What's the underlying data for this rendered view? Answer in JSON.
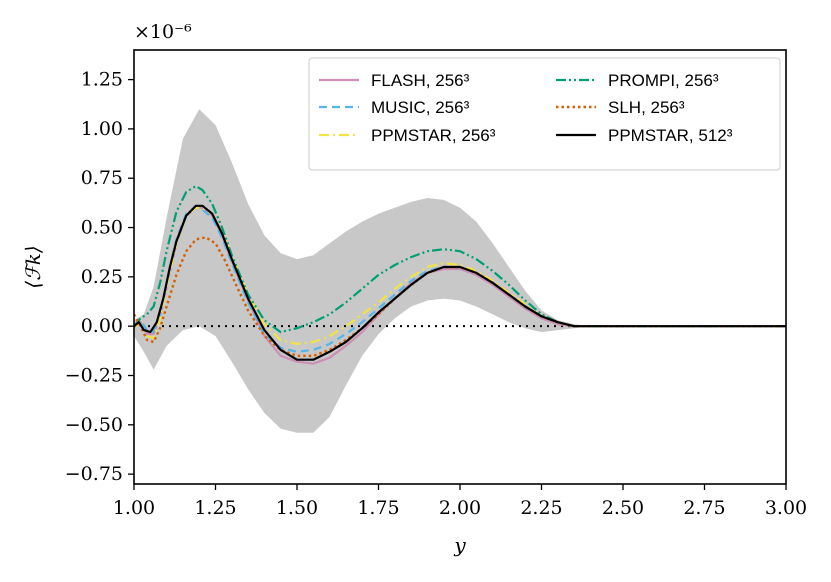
{
  "chart_data": {
    "type": "line",
    "xlabel": "y",
    "ylabel": "⟨ℱk⟩",
    "y_offset_label": "×10⁻⁶",
    "xlim": [
      1.0,
      3.0
    ],
    "ylim": [
      -0.8,
      1.4
    ],
    "x_ticks": [
      "1.00",
      "1.25",
      "1.50",
      "1.75",
      "2.00",
      "2.25",
      "2.50",
      "2.75",
      "3.00"
    ],
    "y_ticks": [
      "−0.75",
      "−0.50",
      "−0.25",
      "0.00",
      "0.25",
      "0.50",
      "0.75",
      "1.00",
      "1.25"
    ],
    "legend_position": "upper-right",
    "band": {
      "color": "#c8c8c8",
      "x": [
        1.0,
        1.03,
        1.06,
        1.1,
        1.15,
        1.2,
        1.25,
        1.3,
        1.35,
        1.4,
        1.45,
        1.5,
        1.55,
        1.6,
        1.65,
        1.7,
        1.75,
        1.8,
        1.85,
        1.9,
        1.95,
        2.0,
        2.05,
        2.1,
        2.15,
        2.2,
        2.25,
        2.3,
        2.35,
        2.4,
        2.5,
        2.75,
        3.0
      ],
      "upper": [
        0.03,
        0.06,
        0.2,
        0.55,
        0.95,
        1.1,
        1.02,
        0.83,
        0.62,
        0.46,
        0.37,
        0.34,
        0.36,
        0.42,
        0.48,
        0.53,
        0.57,
        0.6,
        0.63,
        0.65,
        0.64,
        0.6,
        0.53,
        0.42,
        0.3,
        0.18,
        0.08,
        0.03,
        0.01,
        0.0,
        0.0,
        0.0,
        0.0
      ],
      "lower": [
        -0.05,
        -0.13,
        -0.22,
        -0.1,
        -0.02,
        0.0,
        -0.05,
        -0.18,
        -0.32,
        -0.44,
        -0.52,
        -0.54,
        -0.54,
        -0.46,
        -0.3,
        -0.15,
        -0.04,
        0.04,
        0.1,
        0.13,
        0.14,
        0.13,
        0.1,
        0.06,
        0.02,
        -0.01,
        -0.03,
        -0.02,
        -0.01,
        0.0,
        0.0,
        0.0,
        0.0
      ]
    },
    "zero_line": {
      "color": "#000000",
      "dash": "2,5"
    },
    "series": [
      {
        "name": "FLASH, 256³",
        "color": "#cc8fb5",
        "dash": "",
        "width": 2.2,
        "x": [
          1.0,
          1.02,
          1.04,
          1.06,
          1.08,
          1.1,
          1.13,
          1.16,
          1.19,
          1.21,
          1.24,
          1.27,
          1.3,
          1.35,
          1.4,
          1.45,
          1.5,
          1.55,
          1.6,
          1.65,
          1.7,
          1.75,
          1.8,
          1.85,
          1.9,
          1.95,
          2.0,
          2.05,
          2.1,
          2.15,
          2.2,
          2.25,
          2.3,
          2.35,
          2.4,
          2.5,
          2.75,
          3.0
        ],
        "y": [
          0.0,
          0.02,
          -0.04,
          -0.04,
          0.05,
          0.2,
          0.42,
          0.56,
          0.6,
          0.6,
          0.56,
          0.46,
          0.33,
          0.13,
          -0.05,
          -0.15,
          -0.18,
          -0.19,
          -0.16,
          -0.1,
          -0.03,
          0.06,
          0.14,
          0.22,
          0.27,
          0.29,
          0.29,
          0.26,
          0.21,
          0.15,
          0.09,
          0.04,
          0.01,
          0.0,
          0.0,
          0.0,
          0.0,
          0.0
        ]
      },
      {
        "name": "MUSIC, 256³",
        "color": "#56b4e9",
        "dash": "8,5",
        "width": 2.2,
        "x": [
          1.0,
          1.02,
          1.04,
          1.06,
          1.08,
          1.1,
          1.13,
          1.16,
          1.19,
          1.21,
          1.24,
          1.27,
          1.3,
          1.35,
          1.4,
          1.45,
          1.5,
          1.55,
          1.6,
          1.65,
          1.7,
          1.75,
          1.8,
          1.85,
          1.9,
          1.95,
          2.0,
          2.05,
          2.1,
          2.15,
          2.2,
          2.25,
          2.3,
          2.35,
          2.4,
          2.5,
          2.75,
          3.0
        ],
        "y": [
          0.0,
          0.03,
          -0.02,
          -0.03,
          0.06,
          0.22,
          0.44,
          0.57,
          0.6,
          0.59,
          0.55,
          0.45,
          0.32,
          0.12,
          -0.04,
          -0.11,
          -0.13,
          -0.12,
          -0.09,
          -0.04,
          0.02,
          0.09,
          0.16,
          0.23,
          0.28,
          0.3,
          0.3,
          0.27,
          0.22,
          0.16,
          0.1,
          0.05,
          0.02,
          0.0,
          0.0,
          0.0,
          0.0,
          0.0
        ]
      },
      {
        "name": "PPMSTAR, 256³",
        "color": "#f0e442",
        "dash": "10,4,2,4",
        "width": 2.2,
        "x": [
          1.0,
          1.02,
          1.04,
          1.06,
          1.08,
          1.1,
          1.13,
          1.16,
          1.19,
          1.21,
          1.24,
          1.27,
          1.3,
          1.35,
          1.4,
          1.45,
          1.5,
          1.55,
          1.6,
          1.65,
          1.7,
          1.75,
          1.8,
          1.85,
          1.9,
          1.95,
          2.0,
          2.05,
          2.1,
          2.15,
          2.2,
          2.25,
          2.3,
          2.35,
          2.4,
          2.5,
          2.75,
          3.0
        ],
        "y": [
          0.0,
          0.01,
          -0.05,
          -0.06,
          0.04,
          0.2,
          0.42,
          0.56,
          0.6,
          0.6,
          0.57,
          0.48,
          0.36,
          0.16,
          0.01,
          -0.07,
          -0.09,
          -0.08,
          -0.05,
          0.0,
          0.06,
          0.12,
          0.19,
          0.25,
          0.3,
          0.32,
          0.31,
          0.28,
          0.23,
          0.17,
          0.11,
          0.05,
          0.02,
          0.0,
          0.0,
          0.0,
          0.0,
          0.0
        ]
      },
      {
        "name": "PROMPI, 256³",
        "color": "#009e73",
        "dash": "10,3,2,3,2,3",
        "width": 2.2,
        "x": [
          1.0,
          1.02,
          1.04,
          1.06,
          1.08,
          1.1,
          1.13,
          1.16,
          1.19,
          1.21,
          1.24,
          1.27,
          1.3,
          1.35,
          1.4,
          1.45,
          1.5,
          1.55,
          1.6,
          1.65,
          1.7,
          1.75,
          1.8,
          1.85,
          1.9,
          1.95,
          2.0,
          2.05,
          2.1,
          2.15,
          2.2,
          2.25,
          2.3,
          2.35,
          2.4,
          2.5,
          2.75,
          3.0
        ],
        "y": [
          0.0,
          0.04,
          0.06,
          0.1,
          0.22,
          0.38,
          0.58,
          0.68,
          0.71,
          0.69,
          0.62,
          0.5,
          0.36,
          0.16,
          0.03,
          -0.03,
          -0.01,
          0.02,
          0.06,
          0.12,
          0.19,
          0.26,
          0.31,
          0.35,
          0.38,
          0.39,
          0.38,
          0.34,
          0.28,
          0.21,
          0.13,
          0.06,
          0.02,
          0.0,
          0.0,
          0.0,
          0.0,
          0.0
        ]
      },
      {
        "name": "SLH, 256³",
        "color": "#d55e00",
        "dash": "2.5,3",
        "width": 2.4,
        "x": [
          1.0,
          1.02,
          1.04,
          1.06,
          1.08,
          1.1,
          1.13,
          1.16,
          1.19,
          1.22,
          1.25,
          1.28,
          1.31,
          1.35,
          1.4,
          1.45,
          1.5,
          1.55,
          1.6,
          1.65,
          1.7,
          1.75,
          1.8,
          1.85,
          1.9,
          1.95,
          2.0,
          2.05,
          2.1,
          2.15,
          2.2,
          2.25,
          2.3,
          2.35,
          2.4,
          2.5,
          2.75,
          3.0
        ],
        "y": [
          0.06,
          0.0,
          -0.07,
          -0.08,
          -0.01,
          0.1,
          0.26,
          0.38,
          0.44,
          0.45,
          0.42,
          0.33,
          0.22,
          0.08,
          -0.05,
          -0.12,
          -0.15,
          -0.15,
          -0.12,
          -0.07,
          -0.01,
          0.06,
          0.14,
          0.21,
          0.27,
          0.3,
          0.3,
          0.27,
          0.22,
          0.16,
          0.1,
          0.05,
          0.02,
          0.0,
          0.0,
          0.0,
          0.0,
          0.0
        ]
      },
      {
        "name": "PPMSTAR, 512³",
        "color": "#000000",
        "dash": "",
        "width": 2.2,
        "x": [
          1.0,
          1.015,
          1.03,
          1.05,
          1.07,
          1.09,
          1.11,
          1.13,
          1.16,
          1.19,
          1.21,
          1.24,
          1.27,
          1.3,
          1.35,
          1.4,
          1.45,
          1.5,
          1.55,
          1.6,
          1.65,
          1.7,
          1.75,
          1.8,
          1.85,
          1.9,
          1.95,
          2.0,
          2.05,
          2.1,
          2.15,
          2.2,
          2.25,
          2.3,
          2.35,
          2.4,
          2.5,
          2.75,
          3.0
        ],
        "y": [
          0.0,
          0.02,
          -0.02,
          -0.03,
          0.02,
          0.14,
          0.3,
          0.43,
          0.56,
          0.61,
          0.61,
          0.57,
          0.47,
          0.34,
          0.14,
          -0.02,
          -0.12,
          -0.17,
          -0.17,
          -0.13,
          -0.08,
          -0.01,
          0.07,
          0.14,
          0.21,
          0.27,
          0.3,
          0.3,
          0.27,
          0.22,
          0.16,
          0.1,
          0.05,
          0.02,
          0.0,
          0.0,
          0.0,
          0.0,
          0.0
        ]
      }
    ]
  }
}
